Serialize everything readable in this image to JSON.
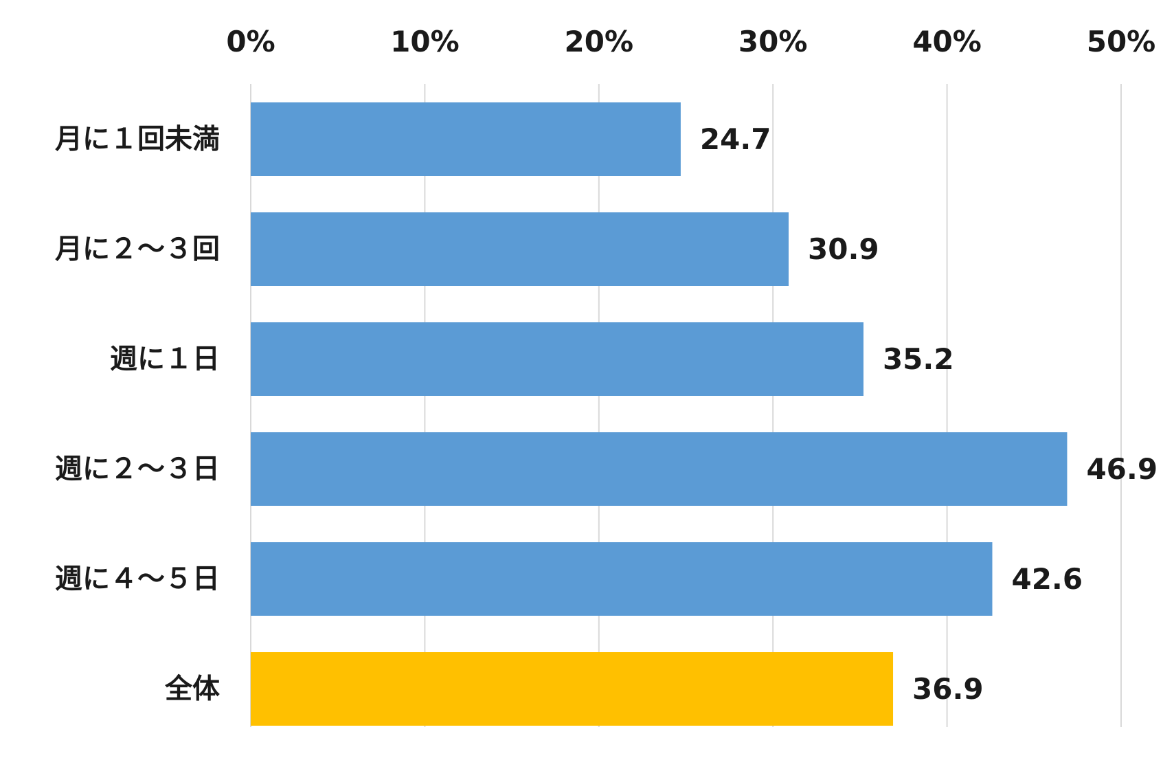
{
  "chart_data": {
    "type": "bar",
    "orientation": "horizontal",
    "categories": [
      "月に１回未満",
      "月に２～３回",
      "週に１日",
      "週に２～３日",
      "週に４～５日",
      "全体"
    ],
    "values": [
      24.7,
      30.9,
      35.2,
      46.9,
      42.6,
      36.9
    ],
    "value_labels": [
      "24.7",
      "30.9",
      "35.2",
      "46.9",
      "42.6",
      "36.9"
    ],
    "x_ticks": [
      "0%",
      "10%",
      "20%",
      "30%",
      "40%",
      "50%"
    ],
    "xlim": [
      0,
      50
    ],
    "x_axis_position": "top",
    "grid": true,
    "colors": {
      "default": "#5b9bd5",
      "highlight": "#ffc000",
      "highlight_index": 5,
      "grid": "#d9d9d9",
      "text": "#1a1a1a"
    },
    "title": "",
    "xlabel": "",
    "ylabel": ""
  }
}
